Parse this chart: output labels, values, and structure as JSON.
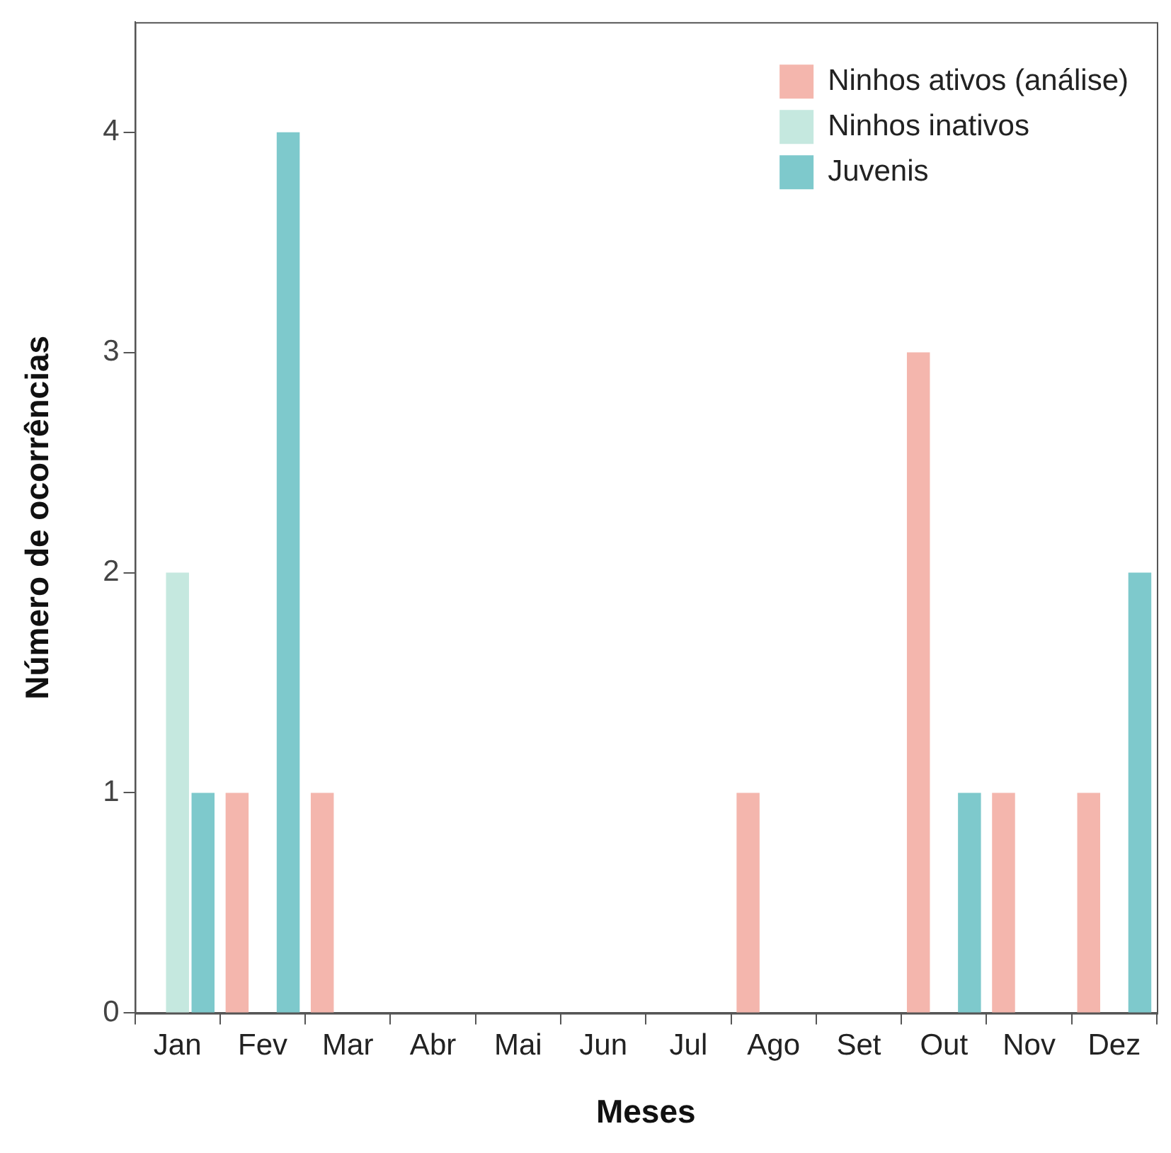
{
  "chart_data": {
    "type": "bar",
    "xlabel": "Meses",
    "ylabel": "Número de ocorrências",
    "categories": [
      "Jan",
      "Fev",
      "Mar",
      "Abr",
      "Mai",
      "Jun",
      "Jul",
      "Ago",
      "Set",
      "Out",
      "Nov",
      "Dez"
    ],
    "series": [
      {
        "name": "Ninhos ativos (análise)",
        "color": "#f4b6ad",
        "values": [
          0,
          1,
          1,
          0,
          0,
          0,
          0,
          1,
          0,
          3,
          1,
          1
        ]
      },
      {
        "name": "Ninhos inativos",
        "color": "#c5e8df",
        "values": [
          2,
          0,
          0,
          0,
          0,
          0,
          0,
          0,
          0,
          0,
          0,
          0
        ]
      },
      {
        "name": "Juvenis",
        "color": "#7ec9cc",
        "values": [
          1,
          4,
          0,
          0,
          0,
          0,
          0,
          0,
          0,
          1,
          0,
          2
        ]
      }
    ],
    "ylim": [
      0,
      4.5
    ],
    "yticks": [
      0,
      1,
      2,
      3,
      4
    ],
    "grid": false,
    "legend": "top right"
  }
}
